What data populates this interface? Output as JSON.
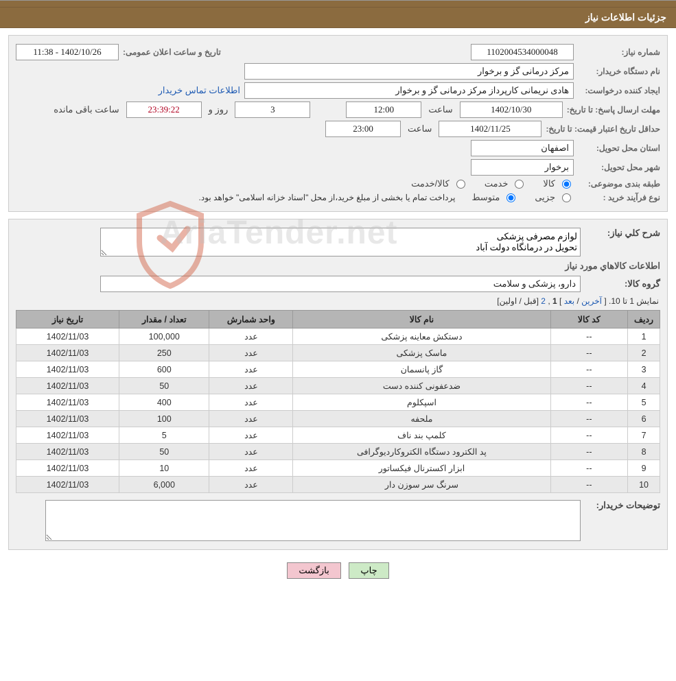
{
  "colors": {
    "header_bg": "#8b6b3f",
    "header_text": "#ffffff",
    "panel_bg": "#f0f0f0",
    "panel_border": "#cccccc",
    "input_border": "#999999",
    "link_color": "#1f5bb3",
    "table_header_bg": "#b5b5b5",
    "row_alt_bg": "#e9e9e9",
    "btn_green": "#cdeac6",
    "btn_pink": "#f3c6cf"
  },
  "header_title": "جزئیات اطلاعات نیاز",
  "watermark": {
    "text": "AriaTender.net",
    "shield_color": "#d46a4f"
  },
  "info": {
    "need_number_label": "شماره نیاز:",
    "need_number": "1102004534000048",
    "announce_label": "تاریخ و ساعت اعلان عمومی:",
    "announce_value": "1402/10/26 - 11:38",
    "buyer_org_label": "نام دستگاه خریدار:",
    "buyer_org": "مرکز درمانی گز و برخوار",
    "requester_label": "ایجاد کننده درخواست:",
    "requester": "هادی نریمانی کارپرداز مرکز درمانی گز و برخوار",
    "buyer_contact_link": "اطلاعات تماس خریدار",
    "reply_deadline_label": "مهلت ارسال پاسخ:",
    "until_date_label": "تا تاریخ:",
    "reply_deadline_date": "1402/10/30",
    "hour_label": "ساعت",
    "reply_deadline_time": "12:00",
    "days_value": "3",
    "days_and_label": "روز و",
    "remaining_time": "23:39:22",
    "remaining_suffix": "ساعت باقی مانده",
    "price_validity_label": "حداقل تاریخ اعتبار قیمت:",
    "price_validity_date": "1402/11/25",
    "price_validity_time": "23:00",
    "delivery_province_label": "استان محل تحویل:",
    "delivery_province": "اصفهان",
    "delivery_city_label": "شهر محل تحویل:",
    "delivery_city": "برخوار",
    "class_label": "طبقه بندی موضوعی:",
    "class_options": {
      "goods": "کالا",
      "service": "خدمت",
      "goods_service": "کالا/خدمت"
    },
    "class_selected": "goods",
    "process_label": "نوع فرآیند خرید :",
    "process_options": {
      "partial": "جزیی",
      "medium": "متوسط"
    },
    "process_selected": "medium",
    "payment_note": "پرداخت تمام یا بخشی از مبلغ خرید،از محل \"اسناد خزانه اسلامی\" خواهد بود."
  },
  "need_desc": {
    "label": "شرح كلي نياز:",
    "text": "لوازم مصرفی پزشکی\nتحویل در درمانگاه دولت آباد"
  },
  "items_section": {
    "title": "اطلاعات كالاهاي مورد نياز",
    "group_label": "گروه کالا:",
    "group_value": "دارو، پزشکی و سلامت"
  },
  "pager": {
    "prefix": "نمایش 1 تا 10.",
    "last": "آخرین",
    "next": "بعد",
    "pages": [
      "1",
      "2"
    ],
    "current": "1",
    "prev": "قبل",
    "first": "اولین"
  },
  "table": {
    "columns": [
      "ردیف",
      "کد کالا",
      "نام کالا",
      "واحد شمارش",
      "تعداد / مقدار",
      "تاریخ نیاز"
    ],
    "col_widths": [
      "5%",
      "12%",
      "40%",
      "13%",
      "14%",
      "16%"
    ],
    "rows": [
      [
        "1",
        "--",
        "دستکش معاینه پزشکی",
        "عدد",
        "100,000",
        "1402/11/03"
      ],
      [
        "2",
        "--",
        "ماسک پزشکی",
        "عدد",
        "250",
        "1402/11/03"
      ],
      [
        "3",
        "--",
        "گاز پانسمان",
        "عدد",
        "600",
        "1402/11/03"
      ],
      [
        "4",
        "--",
        "ضدعفونی کننده دست",
        "عدد",
        "50",
        "1402/11/03"
      ],
      [
        "5",
        "--",
        "اسپکلوم",
        "عدد",
        "400",
        "1402/11/03"
      ],
      [
        "6",
        "--",
        "ملحفه",
        "عدد",
        "100",
        "1402/11/03"
      ],
      [
        "7",
        "--",
        "کلمپ بند ناف",
        "عدد",
        "5",
        "1402/11/03"
      ],
      [
        "8",
        "--",
        "پد الکترود دستگاه الکتروکاردیوگرافی",
        "عدد",
        "50",
        "1402/11/03"
      ],
      [
        "9",
        "--",
        "ابزار اکسترنال فیکساتور",
        "عدد",
        "10",
        "1402/11/03"
      ],
      [
        "10",
        "--",
        "سرنگ سر سوزن دار",
        "عدد",
        "6,000",
        "1402/11/03"
      ]
    ]
  },
  "buyer_notes": {
    "label": "توضيحات خريدار:",
    "text": ""
  },
  "buttons": {
    "print": "چاپ",
    "back": "بازگشت"
  }
}
